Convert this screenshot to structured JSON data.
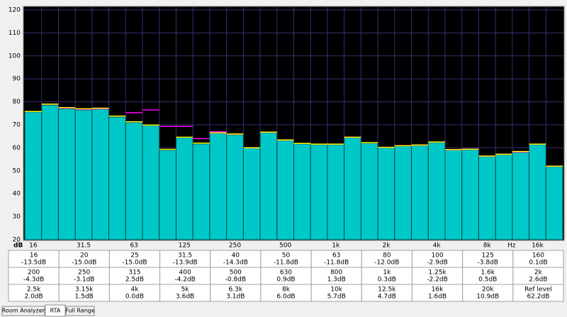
{
  "chart_data": {
    "type": "bar",
    "y_label": "dB",
    "x_label": "Hz",
    "categories": [
      "16",
      null,
      null,
      "31.5",
      null,
      null,
      "63",
      null,
      null,
      "125",
      null,
      null,
      "250",
      null,
      null,
      "500",
      null,
      null,
      "1k",
      null,
      null,
      "2k",
      null,
      null,
      "4k",
      null,
      null,
      "8k",
      null,
      null,
      "16k",
      null
    ],
    "values": [
      75.6,
      78.6,
      77,
      76.5,
      76.8,
      73.4,
      71,
      69.7,
      59,
      64.4,
      61.7,
      66.3,
      65.7,
      60,
      66.6,
      63.2,
      61.7,
      61.4,
      61.4,
      64.4,
      62,
      60,
      60.7,
      61,
      62.3,
      59,
      59.2,
      56.2,
      57,
      58,
      61.4,
      51.8
    ],
    "color": "#00c8c8",
    "overlays": [
      {
        "color": "#ff00ff",
        "values": [
          75.8,
          79,
          77.3,
          76.8,
          77,
          73.8,
          75.3,
          76.5,
          69.3,
          69.3,
          64,
          67,
          66,
          60,
          66.8,
          63.4,
          61.9,
          61.6,
          61.6,
          64.6,
          62.2,
          60.2,
          60.9,
          61.2,
          62.5,
          59.2,
          59.4,
          56.4,
          57.2,
          58.2,
          61.6,
          52
        ]
      },
      {
        "color": "#ffff00",
        "values": [
          75.8,
          79,
          77.5,
          77,
          77.2,
          73.8,
          71.3,
          69.9,
          59.3,
          64.6,
          62,
          66.5,
          66,
          60,
          66.8,
          63.4,
          61.9,
          61.6,
          61.6,
          64.6,
          62.2,
          60.2,
          60.9,
          61.2,
          62.5,
          59.2,
          59.4,
          56.4,
          57.2,
          58.4,
          61.6,
          52
        ]
      }
    ],
    "ylim": [
      20,
      120
    ],
    "yticks": [
      20,
      30,
      40,
      50,
      60,
      70,
      80,
      90,
      100,
      110,
      120
    ],
    "grid": true
  },
  "table": {
    "rows": [
      [
        {
          "name": "16",
          "value": "-13.5dB"
        },
        {
          "name": "20",
          "value": "-15.0dB"
        },
        {
          "name": "25",
          "value": "-15.0dB"
        },
        {
          "name": "31.5",
          "value": "-13.9dB"
        },
        {
          "name": "40",
          "value": "-14.3dB"
        },
        {
          "name": "50",
          "value": "-11.8dB"
        },
        {
          "name": "63",
          "value": "-11.8dB"
        },
        {
          "name": "80",
          "value": "-12.0dB"
        },
        {
          "name": "100",
          "value": "-2.9dB"
        },
        {
          "name": "125",
          "value": "-3.8dB"
        },
        {
          "name": "160",
          "value": "0.1dB"
        }
      ],
      [
        {
          "name": "200",
          "value": "-4.3dB"
        },
        {
          "name": "250",
          "value": "-3.1dB"
        },
        {
          "name": "315",
          "value": "2.5dB"
        },
        {
          "name": "400",
          "value": "-4.2dB"
        },
        {
          "name": "500",
          "value": "-0.8dB"
        },
        {
          "name": "630",
          "value": "0.9dB"
        },
        {
          "name": "800",
          "value": "1.3dB"
        },
        {
          "name": "1k",
          "value": "0.3dB"
        },
        {
          "name": "1.25k",
          "value": "-2.2dB"
        },
        {
          "name": "1.6k",
          "value": "0.5dB"
        },
        {
          "name": "2k",
          "value": "2.6dB"
        }
      ],
      [
        {
          "name": "2.5k",
          "value": "2.0dB"
        },
        {
          "name": "3.15k",
          "value": "1.5dB"
        },
        {
          "name": "4k",
          "value": "0.0dB"
        },
        {
          "name": "5k",
          "value": "3.6dB"
        },
        {
          "name": "6.3k",
          "value": "3.1dB"
        },
        {
          "name": "8k",
          "value": "6.0dB"
        },
        {
          "name": "10k",
          "value": "5.7dB"
        },
        {
          "name": "12.5k",
          "value": "4.7dB"
        },
        {
          "name": "16k",
          "value": "1.6dB"
        },
        {
          "name": "20k",
          "value": "10.9dB"
        },
        {
          "name": "Ref level",
          "value": "62.2dB"
        }
      ]
    ]
  },
  "tabs": [
    "Room Analyzer",
    "RTA",
    "Full Range"
  ]
}
